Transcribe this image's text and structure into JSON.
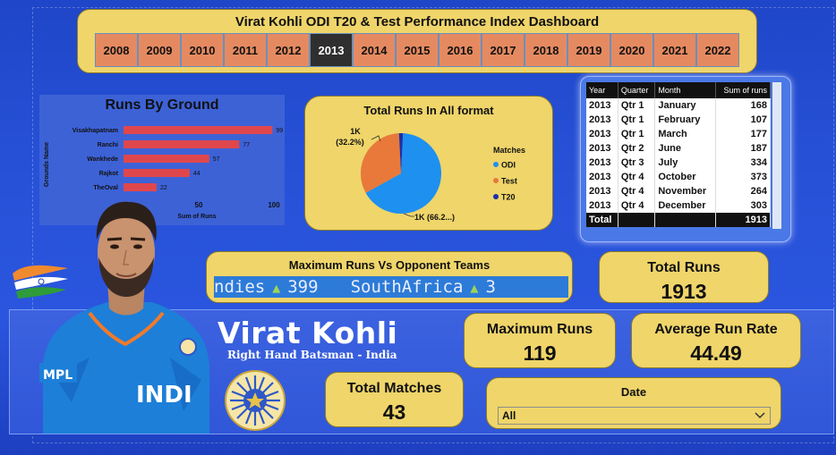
{
  "header": {
    "title": "Virat Kohli ODI T20 & Test Performance Index Dashboard",
    "years": [
      "2008",
      "2009",
      "2010",
      "2011",
      "2012",
      "2013",
      "2014",
      "2015",
      "2016",
      "2017",
      "2018",
      "2019",
      "2020",
      "2021",
      "2022"
    ],
    "selected_year": "2013"
  },
  "ground_chart": {
    "title": "Runs By Ground",
    "ylabel": "Grounds Name",
    "xlabel": "Sum of Runs",
    "ticks": [
      "0",
      "50",
      "100"
    ],
    "bar_color": "#e0474c"
  },
  "pie_chart": {
    "title": "Total Runs In All format",
    "legend_title": "Matches",
    "label_test": "1K",
    "label_test_pct": "(32.2%)",
    "label_odi": "1K (66.2...)"
  },
  "chart_data": [
    {
      "type": "bar",
      "orientation": "horizontal",
      "title": "Runs By Ground",
      "xlabel": "Sum of Runs",
      "ylabel": "Grounds Name",
      "categories": [
        "Visakhapatnam",
        "Ranchi",
        "Wankhede",
        "Rajkot",
        "TheOval"
      ],
      "values": [
        99,
        77,
        57,
        44,
        22
      ],
      "xlim": [
        0,
        100
      ],
      "grid": false
    },
    {
      "type": "pie",
      "title": "Total Runs In All format",
      "labels": [
        "ODI",
        "Test",
        "T20"
      ],
      "values": [
        66.2,
        32.2,
        1.6
      ],
      "colors": [
        "#1e90f0",
        "#e8793a",
        "#1c2fa8"
      ],
      "legend": "right"
    }
  ],
  "table": {
    "headers": [
      "Year",
      "Quarter",
      "Month",
      "Sum of runs"
    ],
    "rows": [
      [
        "2013",
        "Qtr 1",
        "January",
        "168"
      ],
      [
        "2013",
        "Qtr 1",
        "February",
        "107"
      ],
      [
        "2013",
        "Qtr 1",
        "March",
        "177"
      ],
      [
        "2013",
        "Qtr 2",
        "June",
        "187"
      ],
      [
        "2013",
        "Qtr 3",
        "July",
        "334"
      ],
      [
        "2013",
        "Qtr 4",
        "October",
        "373"
      ],
      [
        "2013",
        "Qtr 4",
        "November",
        "264"
      ],
      [
        "2013",
        "Qtr 4",
        "December",
        "303"
      ]
    ],
    "total_label": "Total",
    "total_value": "1913"
  },
  "opponents": {
    "title": "Maximum Runs Vs Opponent Teams",
    "items": [
      {
        "team": "ndies",
        "runs": "399"
      },
      {
        "team": "SouthAfrica",
        "runs": "3"
      }
    ],
    "arrow": "▲"
  },
  "kpis": {
    "total_runs_label": "Total Runs",
    "total_runs": "1913",
    "max_runs_label": "Maximum Runs",
    "max_runs": "119",
    "avg_label": "Average Run Rate",
    "avg": "44.49",
    "matches_label": "Total Matches",
    "matches": "43"
  },
  "player": {
    "name": "Virat Kohli",
    "subtitle": "Right Hand Batsman - India",
    "jersey_text": "INDI",
    "sponsor": "MPL"
  },
  "date_filter": {
    "label": "Date",
    "value": "All"
  },
  "colors": {
    "card": "#efd56a",
    "background": "#2752d8",
    "bar": "#e0474c",
    "odi": "#1e90f0",
    "test": "#e8793a",
    "t20": "#1c2fa8"
  }
}
